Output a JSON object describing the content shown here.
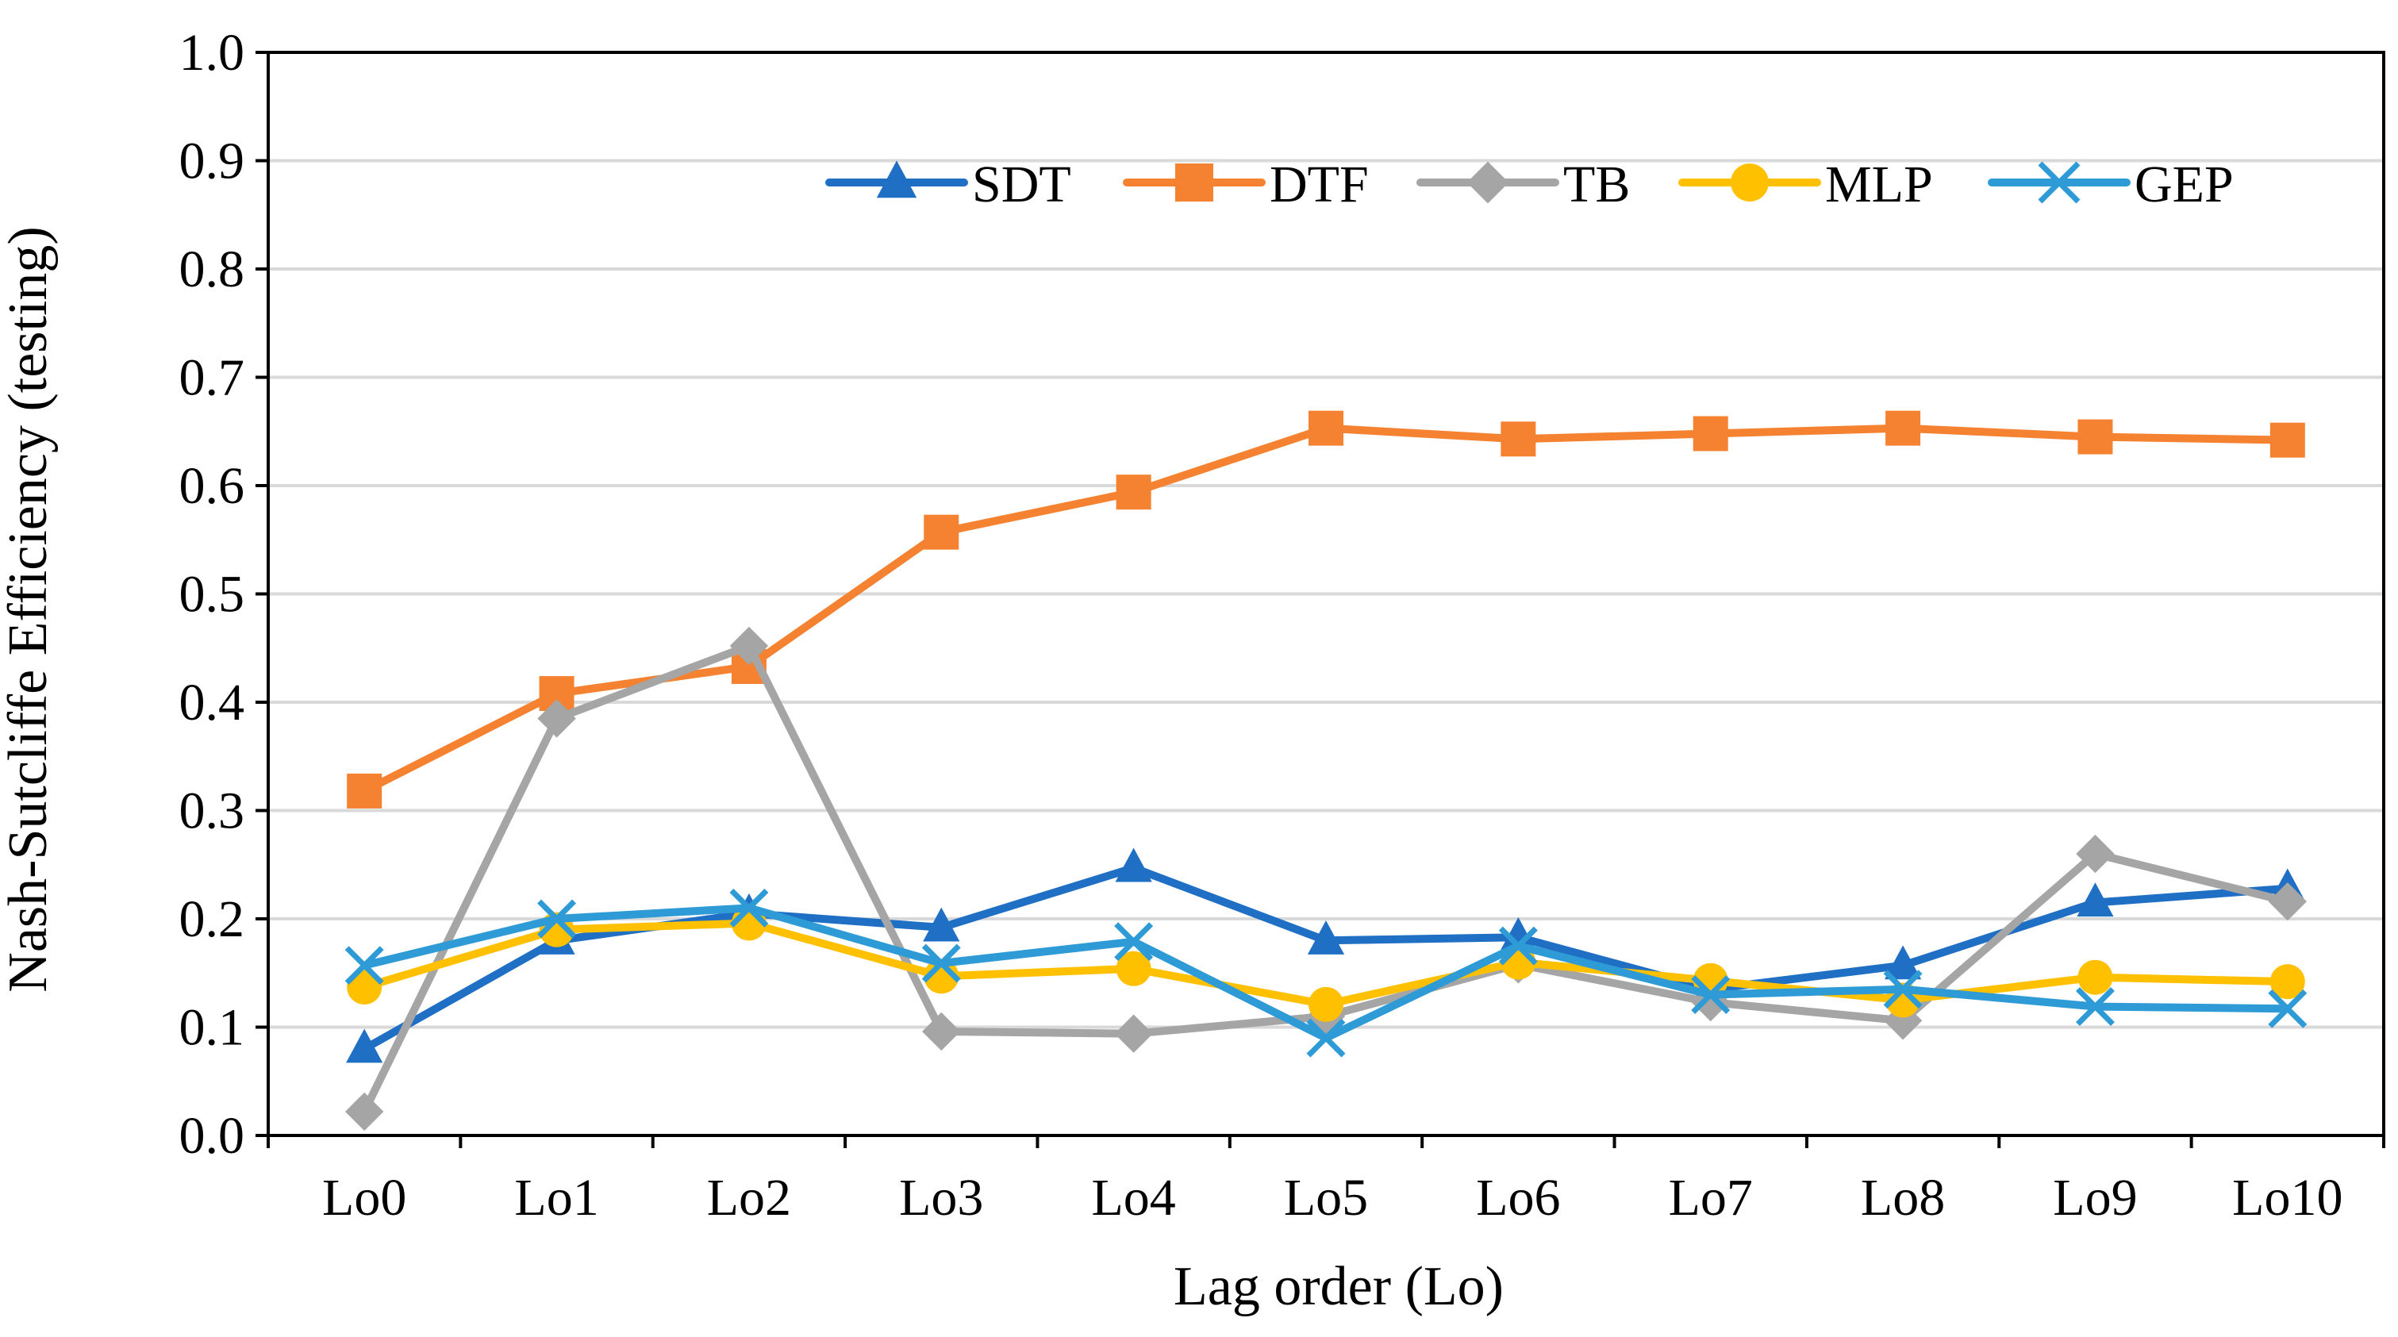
{
  "chart_data": {
    "type": "line",
    "title": "",
    "xlabel": "Lag order (Lo)",
    "ylabel": "Nash-Sutcliffe Efficiency (testing)",
    "ylim": [
      0.0,
      1.0
    ],
    "yticks": [
      "0.0",
      "0.1",
      "0.2",
      "0.3",
      "0.4",
      "0.5",
      "0.6",
      "0.7",
      "0.8",
      "0.9",
      "1.0"
    ],
    "grid": "horizontal",
    "legend_position": "top-right",
    "categories": [
      "Lo0",
      "Lo1",
      "Lo2",
      "Lo3",
      "Lo4",
      "Lo5",
      "Lo6",
      "Lo7",
      "Lo8",
      "Lo9",
      "Lo10"
    ],
    "series": [
      {
        "name": "SDT",
        "color": "#1F6FC5",
        "marker": "triangle",
        "values": [
          0.08,
          0.18,
          0.205,
          0.192,
          0.247,
          0.18,
          0.183,
          0.135,
          0.157,
          0.215,
          0.228
        ]
      },
      {
        "name": "DTF",
        "color": "#F58231",
        "marker": "square",
        "values": [
          0.318,
          0.408,
          0.433,
          0.557,
          0.594,
          0.653,
          0.643,
          0.648,
          0.653,
          0.645,
          0.642
        ]
      },
      {
        "name": "TB",
        "color": "#A5A5A5",
        "marker": "diamond",
        "values": [
          0.022,
          0.385,
          0.452,
          0.096,
          0.094,
          0.11,
          0.158,
          0.123,
          0.106,
          0.26,
          0.216
        ]
      },
      {
        "name": "MLP",
        "color": "#FFC000",
        "marker": "circle",
        "values": [
          0.137,
          0.19,
          0.196,
          0.147,
          0.154,
          0.121,
          0.16,
          0.143,
          0.125,
          0.146,
          0.142
        ]
      },
      {
        "name": "GEP",
        "color": "#2E9BD6",
        "marker": "x",
        "values": [
          0.157,
          0.2,
          0.21,
          0.159,
          0.179,
          0.09,
          0.175,
          0.13,
          0.135,
          0.119,
          0.117
        ]
      }
    ]
  }
}
